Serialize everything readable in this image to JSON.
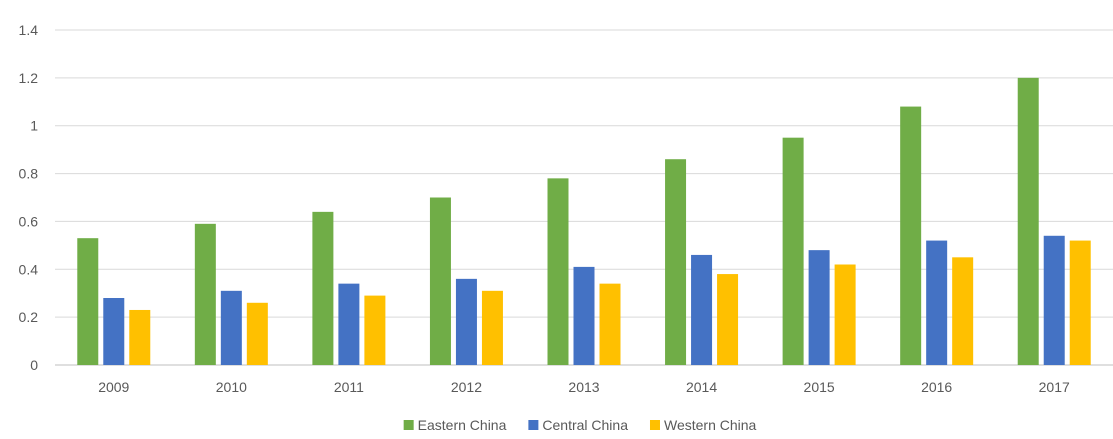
{
  "chart_data": {
    "type": "bar",
    "categories": [
      "2009",
      "2010",
      "2011",
      "2012",
      "2013",
      "2014",
      "2015",
      "2016",
      "2017"
    ],
    "series": [
      {
        "name": "Eastern China",
        "color": "#70ad47",
        "values": [
          0.53,
          0.59,
          0.64,
          0.7,
          0.78,
          0.86,
          0.95,
          1.08,
          1.2
        ]
      },
      {
        "name": "Central China",
        "color": "#4472c4",
        "values": [
          0.28,
          0.31,
          0.34,
          0.36,
          0.41,
          0.46,
          0.48,
          0.52,
          0.54
        ]
      },
      {
        "name": "Western China",
        "color": "#ffc000",
        "values": [
          0.23,
          0.26,
          0.29,
          0.31,
          0.34,
          0.38,
          0.42,
          0.45,
          0.52
        ]
      }
    ],
    "ylim": [
      0,
      1.4
    ],
    "yticks": [
      "0",
      "0.2",
      "0.4",
      "0.6",
      "0.8",
      "1",
      "1.2",
      "1.4"
    ],
    "grid": true,
    "legend_position": "bottom"
  }
}
